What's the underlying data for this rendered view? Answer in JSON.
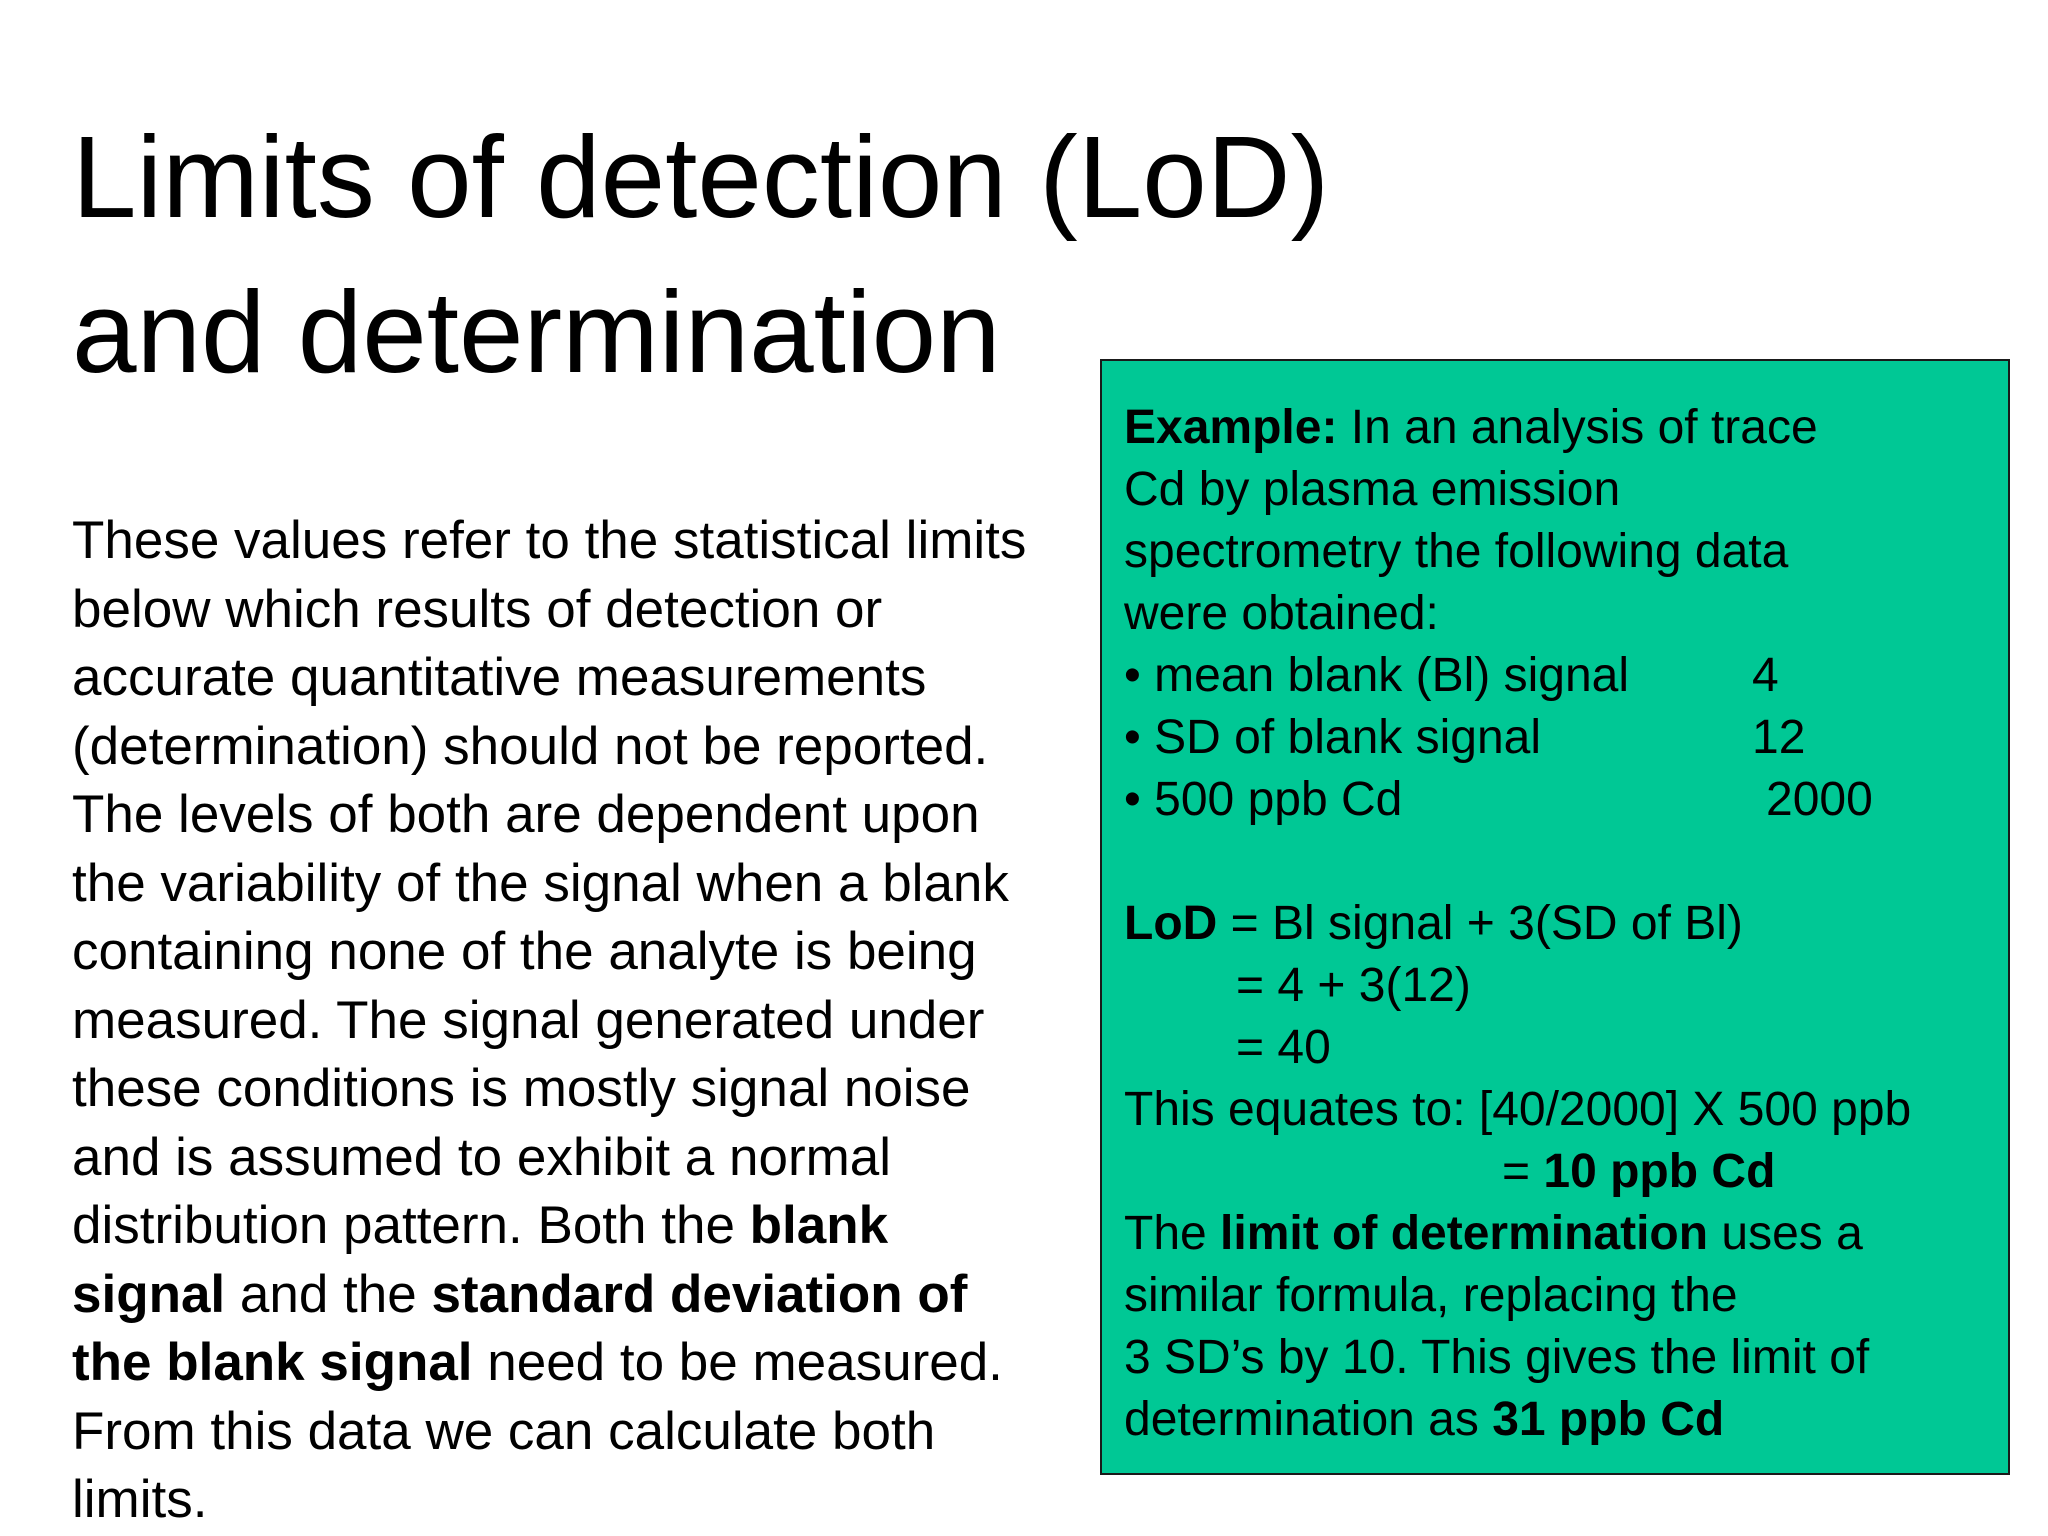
{
  "title": {
    "line1": "Limits of detection (LoD)",
    "line2": "and determination"
  },
  "body": {
    "l1": "These values refer to the statistical limits",
    "l2": "below which results of detection or",
    "l3": "accurate quantitative measurements",
    "l4": "(determination) should not be reported.",
    "l5": "The levels of both are dependent upon",
    "l6": "the variability of the signal when a blank",
    "l7": "containing none of the analyte is being",
    "l8": "measured.  The signal generated under",
    "l9": "these conditions is mostly signal noise",
    "l10": "and is assumed to exhibit a normal",
    "l11_a": "distribution pattern.  Both the ",
    "l11_b": "blank",
    "l12_a": "signal",
    "l12_b": " and the ",
    "l12_c": "standard deviation of",
    "l13_a": "the blank signal",
    "l13_b": " need to be measured.",
    "l14": "From this data we can calculate both",
    "l15": "limits."
  },
  "example": {
    "l1_bold": "Example:",
    "l1_rest": " In an analysis of trace",
    "l2": "Cd by plasma emission",
    "l3": "spectrometry the following data",
    "l4": "were obtained:",
    "bullets": [
      {
        "label": "• mean blank (Bl) signal",
        "value": "4"
      },
      {
        "label": "• SD of blank signal",
        "value": "12"
      },
      {
        "label": "• 500 ppb Cd",
        "value": "2000"
      }
    ],
    "lod_bold": "LoD",
    "lod_rest": " = Bl signal + 3(SD of Bl)",
    "lod_step2": "= 4 + 3(12)",
    "lod_step3": "= 40",
    "equates": "This equates to: [40/2000] X 500 ppb",
    "result_prefix": "= ",
    "result_bold": "10 ppb Cd",
    "lim_a": "The ",
    "lim_b": "limit of determination",
    "lim_c": " uses a",
    "lim2": "similar formula, replacing the",
    "lim3": "3 SD’s by 10. This gives the limit of",
    "lim4_a": "determination as ",
    "lim4_b": "31 ppb Cd"
  },
  "colors": {
    "box_background": "#00c895",
    "text": "#000000"
  }
}
